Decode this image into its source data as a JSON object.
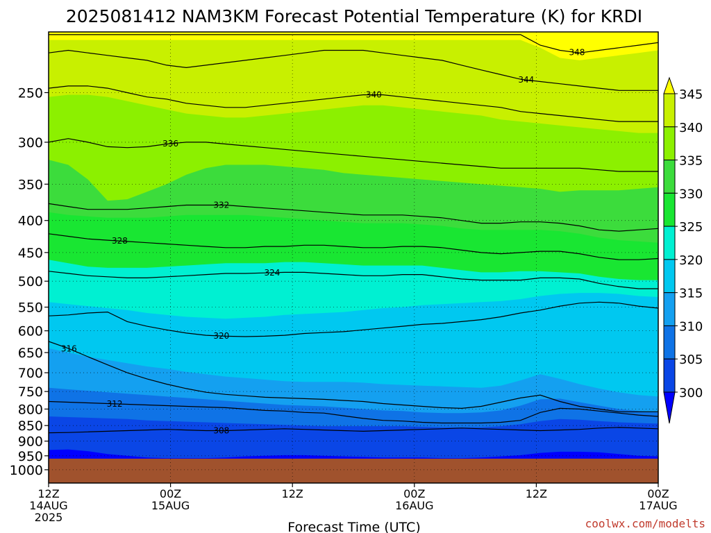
{
  "chart_data": {
    "type": "heatmap",
    "title": "2025081412 NAM3KM Forecast Potential Temperature (K) for KRDI",
    "xlabel": "Forecast Time (UTC)",
    "ylabel": "",
    "x_ticks": [
      {
        "hour": 0,
        "line1": "12Z",
        "line2": "14AUG",
        "line3": "2025"
      },
      {
        "hour": 12,
        "line1": "00Z",
        "line2": "15AUG",
        "line3": ""
      },
      {
        "hour": 24,
        "line1": "12Z",
        "line2": "",
        "line3": ""
      },
      {
        "hour": 36,
        "line1": "00Z",
        "line2": "16AUG",
        "line3": ""
      },
      {
        "hour": 48,
        "line1": "12Z",
        "line2": "",
        "line3": ""
      },
      {
        "hour": 60,
        "line1": "00Z",
        "line2": "17AUG",
        "line3": ""
      }
    ],
    "xlim": [
      0,
      60
    ],
    "y_ticks": [
      250,
      300,
      350,
      400,
      450,
      500,
      550,
      600,
      650,
      700,
      750,
      800,
      850,
      900,
      950,
      1000
    ],
    "ylim": [
      1050,
      200
    ],
    "y_scale": "log-pressure",
    "colorbar": {
      "levels": [
        300,
        305,
        310,
        315,
        320,
        325,
        330,
        335,
        340,
        345
      ],
      "colors": [
        "#0000ff",
        "#0a46e6",
        "#0f73e6",
        "#14a0f0",
        "#00c8f0",
        "#00f0d2",
        "#19e632",
        "#3cdc3c",
        "#8cf000",
        "#c8f000",
        "#ffff00"
      ],
      "extend": "both"
    },
    "ground": {
      "color": "#a0522d"
    },
    "contours": [
      {
        "value": 308,
        "p": [
          873,
          872,
          870,
          868,
          866,
          864,
          862,
          864,
          866,
          866,
          864,
          862,
          860,
          862,
          864,
          866,
          868,
          866,
          864,
          862,
          860,
          858,
          860,
          862,
          864,
          866,
          864,
          862,
          858,
          856,
          858,
          860
        ],
        "label_hour": 17
      },
      {
        "value": 312,
        "p": [
          778,
          780,
          782,
          784,
          786,
          788,
          790,
          792,
          794,
          796,
          800,
          804,
          806,
          810,
          812,
          820,
          828,
          834,
          836,
          840,
          842,
          842,
          842,
          840,
          834,
          810,
          798,
          800,
          806,
          812,
          818,
          822
        ],
        "label_hour": 6.5
      },
      {
        "value": 316,
        "p": [
          624,
          640,
          660,
          680,
          700,
          716,
          730,
          742,
          752,
          758,
          762,
          766,
          768,
          770,
          772,
          775,
          778,
          784,
          788,
          792,
          796,
          798,
          792,
          780,
          768,
          760,
          778,
          792,
          800,
          808,
          808,
          808
        ],
        "label_hour": 2
      },
      {
        "value": 320,
        "p": [
          568,
          566,
          562,
          560,
          580,
          590,
          598,
          605,
          610,
          612,
          613,
          612,
          610,
          606,
          604,
          602,
          598,
          594,
          590,
          586,
          584,
          580,
          576,
          570,
          562,
          556,
          548,
          542,
          540,
          542,
          548,
          552
        ],
        "label_hour": 17
      },
      {
        "value": 324,
        "p": [
          482,
          486,
          490,
          492,
          494,
          494,
          492,
          490,
          488,
          486,
          486,
          485,
          484,
          484,
          486,
          488,
          490,
          490,
          488,
          488,
          492,
          496,
          498,
          498,
          498,
          494,
          494,
          496,
          504,
          510,
          514,
          514
        ],
        "label_hour": 22
      },
      {
        "value": 328,
        "p": [
          420,
          424,
          428,
          430,
          432,
          434,
          436,
          438,
          440,
          442,
          442,
          440,
          440,
          438,
          438,
          440,
          442,
          442,
          440,
          440,
          442,
          446,
          450,
          452,
          450,
          448,
          448,
          452,
          458,
          462,
          462,
          460
        ],
        "label_hour": 7
      },
      {
        "value": 332,
        "p": [
          376,
          380,
          384,
          384,
          384,
          382,
          380,
          378,
          378,
          378,
          380,
          382,
          384,
          386,
          388,
          390,
          392,
          392,
          392,
          394,
          396,
          400,
          404,
          404,
          402,
          402,
          404,
          408,
          414,
          416,
          414,
          412
        ],
        "label_hour": 17
      },
      {
        "value": 336,
        "p": [
          300,
          296,
          300,
          305,
          306,
          305,
          302,
          300,
          300,
          302,
          304,
          306,
          308,
          310,
          312,
          314,
          316,
          318,
          320,
          322,
          324,
          326,
          328,
          330,
          330,
          330,
          330,
          330,
          332,
          334,
          334,
          334
        ],
        "label_hour": 12
      },
      {
        "value": 340,
        "p": [
          246,
          244,
          244,
          246,
          250,
          254,
          256,
          260,
          262,
          264,
          264,
          262,
          260,
          258,
          256,
          254,
          252,
          252,
          254,
          256,
          258,
          260,
          262,
          264,
          268,
          270,
          272,
          274,
          276,
          278,
          278,
          278
        ],
        "label_hour": 32
      },
      {
        "value": 344,
        "p": [
          216,
          214,
          216,
          218,
          220,
          222,
          226,
          228,
          226,
          224,
          222,
          220,
          218,
          216,
          214,
          214,
          214,
          216,
          218,
          220,
          222,
          226,
          230,
          234,
          238,
          240,
          242,
          244,
          246,
          248,
          248,
          248
        ],
        "label_hour": 47
      },
      {
        "value": 348,
        "p": [
          202,
          202,
          202,
          202,
          202,
          202,
          202,
          202,
          202,
          202,
          202,
          202,
          202,
          202,
          202,
          202,
          202,
          202,
          202,
          202,
          202,
          202,
          202,
          202,
          202,
          210,
          214,
          216,
          214,
          212,
          210,
          208
        ],
        "label_hour": 52
      }
    ],
    "fill_bands": [
      {
        "level": 345,
        "p": [
          206,
          206,
          206,
          206,
          206,
          206,
          206,
          206,
          206,
          206,
          206,
          206,
          206,
          206,
          206,
          206,
          206,
          206,
          206,
          206,
          206,
          206,
          206,
          206,
          206,
          212,
          220,
          222,
          220,
          218,
          216,
          214
        ]
      },
      {
        "level": 340,
        "p": [
          254,
          252,
          252,
          254,
          258,
          262,
          266,
          270,
          272,
          274,
          274,
          272,
          270,
          268,
          266,
          264,
          262,
          262,
          264,
          266,
          268,
          270,
          272,
          276,
          278,
          280,
          282,
          284,
          286,
          288,
          290,
          290
        ]
      },
      {
        "level": 335,
        "p": [
          320,
          326,
          344,
          372,
          370,
          360,
          350,
          338,
          330,
          326,
          326,
          326,
          328,
          330,
          332,
          336,
          338,
          340,
          342,
          344,
          346,
          348,
          350,
          352,
          354,
          356,
          360,
          358,
          358,
          358,
          356,
          354
        ]
      },
      {
        "level": 330,
        "p": [
          388,
          392,
          394,
          396,
          396,
          396,
          394,
          392,
          392,
          392,
          392,
          394,
          396,
          398,
          400,
          402,
          404,
          404,
          404,
          406,
          408,
          412,
          414,
          414,
          414,
          414,
          416,
          420,
          426,
          430,
          432,
          434
        ]
      },
      {
        "level": 325,
        "p": [
          462,
          468,
          474,
          476,
          476,
          476,
          474,
          472,
          470,
          468,
          468,
          468,
          466,
          466,
          468,
          470,
          472,
          472,
          472,
          472,
          476,
          480,
          484,
          484,
          482,
          482,
          484,
          486,
          492,
          496,
          498,
          498
        ]
      },
      {
        "level": 320,
        "p": [
          540,
          544,
          548,
          552,
          556,
          562,
          566,
          570,
          572,
          574,
          572,
          570,
          566,
          564,
          562,
          560,
          556,
          552,
          550,
          546,
          544,
          542,
          540,
          538,
          534,
          528,
          524,
          522,
          522,
          524,
          528,
          530
        ]
      },
      {
        "level": 315,
        "p": [
          640,
          650,
          660,
          668,
          676,
          684,
          690,
          698,
          704,
          710,
          714,
          718,
          722,
          724,
          724,
          724,
          726,
          730,
          732,
          734,
          736,
          738,
          740,
          734,
          720,
          704,
          716,
          730,
          742,
          752,
          760,
          764
        ]
      },
      {
        "level": 310,
        "p": [
          740,
          744,
          748,
          752,
          756,
          760,
          764,
          768,
          772,
          776,
          780,
          784,
          788,
          790,
          792,
          796,
          800,
          804,
          806,
          810,
          812,
          812,
          810,
          804,
          790,
          772,
          770,
          780,
          790,
          800,
          806,
          810
        ]
      },
      {
        "level": 305,
        "p": [
          822,
          824,
          826,
          828,
          830,
          834,
          836,
          838,
          840,
          842,
          844,
          846,
          848,
          850,
          852,
          852,
          852,
          852,
          852,
          854,
          856,
          856,
          856,
          852,
          846,
          836,
          830,
          832,
          836,
          840,
          842,
          844
        ]
      },
      {
        "level": 300,
        "p": [
          930,
          928,
          934,
          944,
          950,
          956,
          958,
          958,
          958,
          956,
          952,
          950,
          948,
          948,
          950,
          952,
          954,
          956,
          956,
          956,
          958,
          958,
          956,
          952,
          948,
          940,
          936,
          936,
          938,
          944,
          950,
          952
        ]
      }
    ]
  },
  "footer": {
    "credit": "coolwx.com/modelts"
  }
}
